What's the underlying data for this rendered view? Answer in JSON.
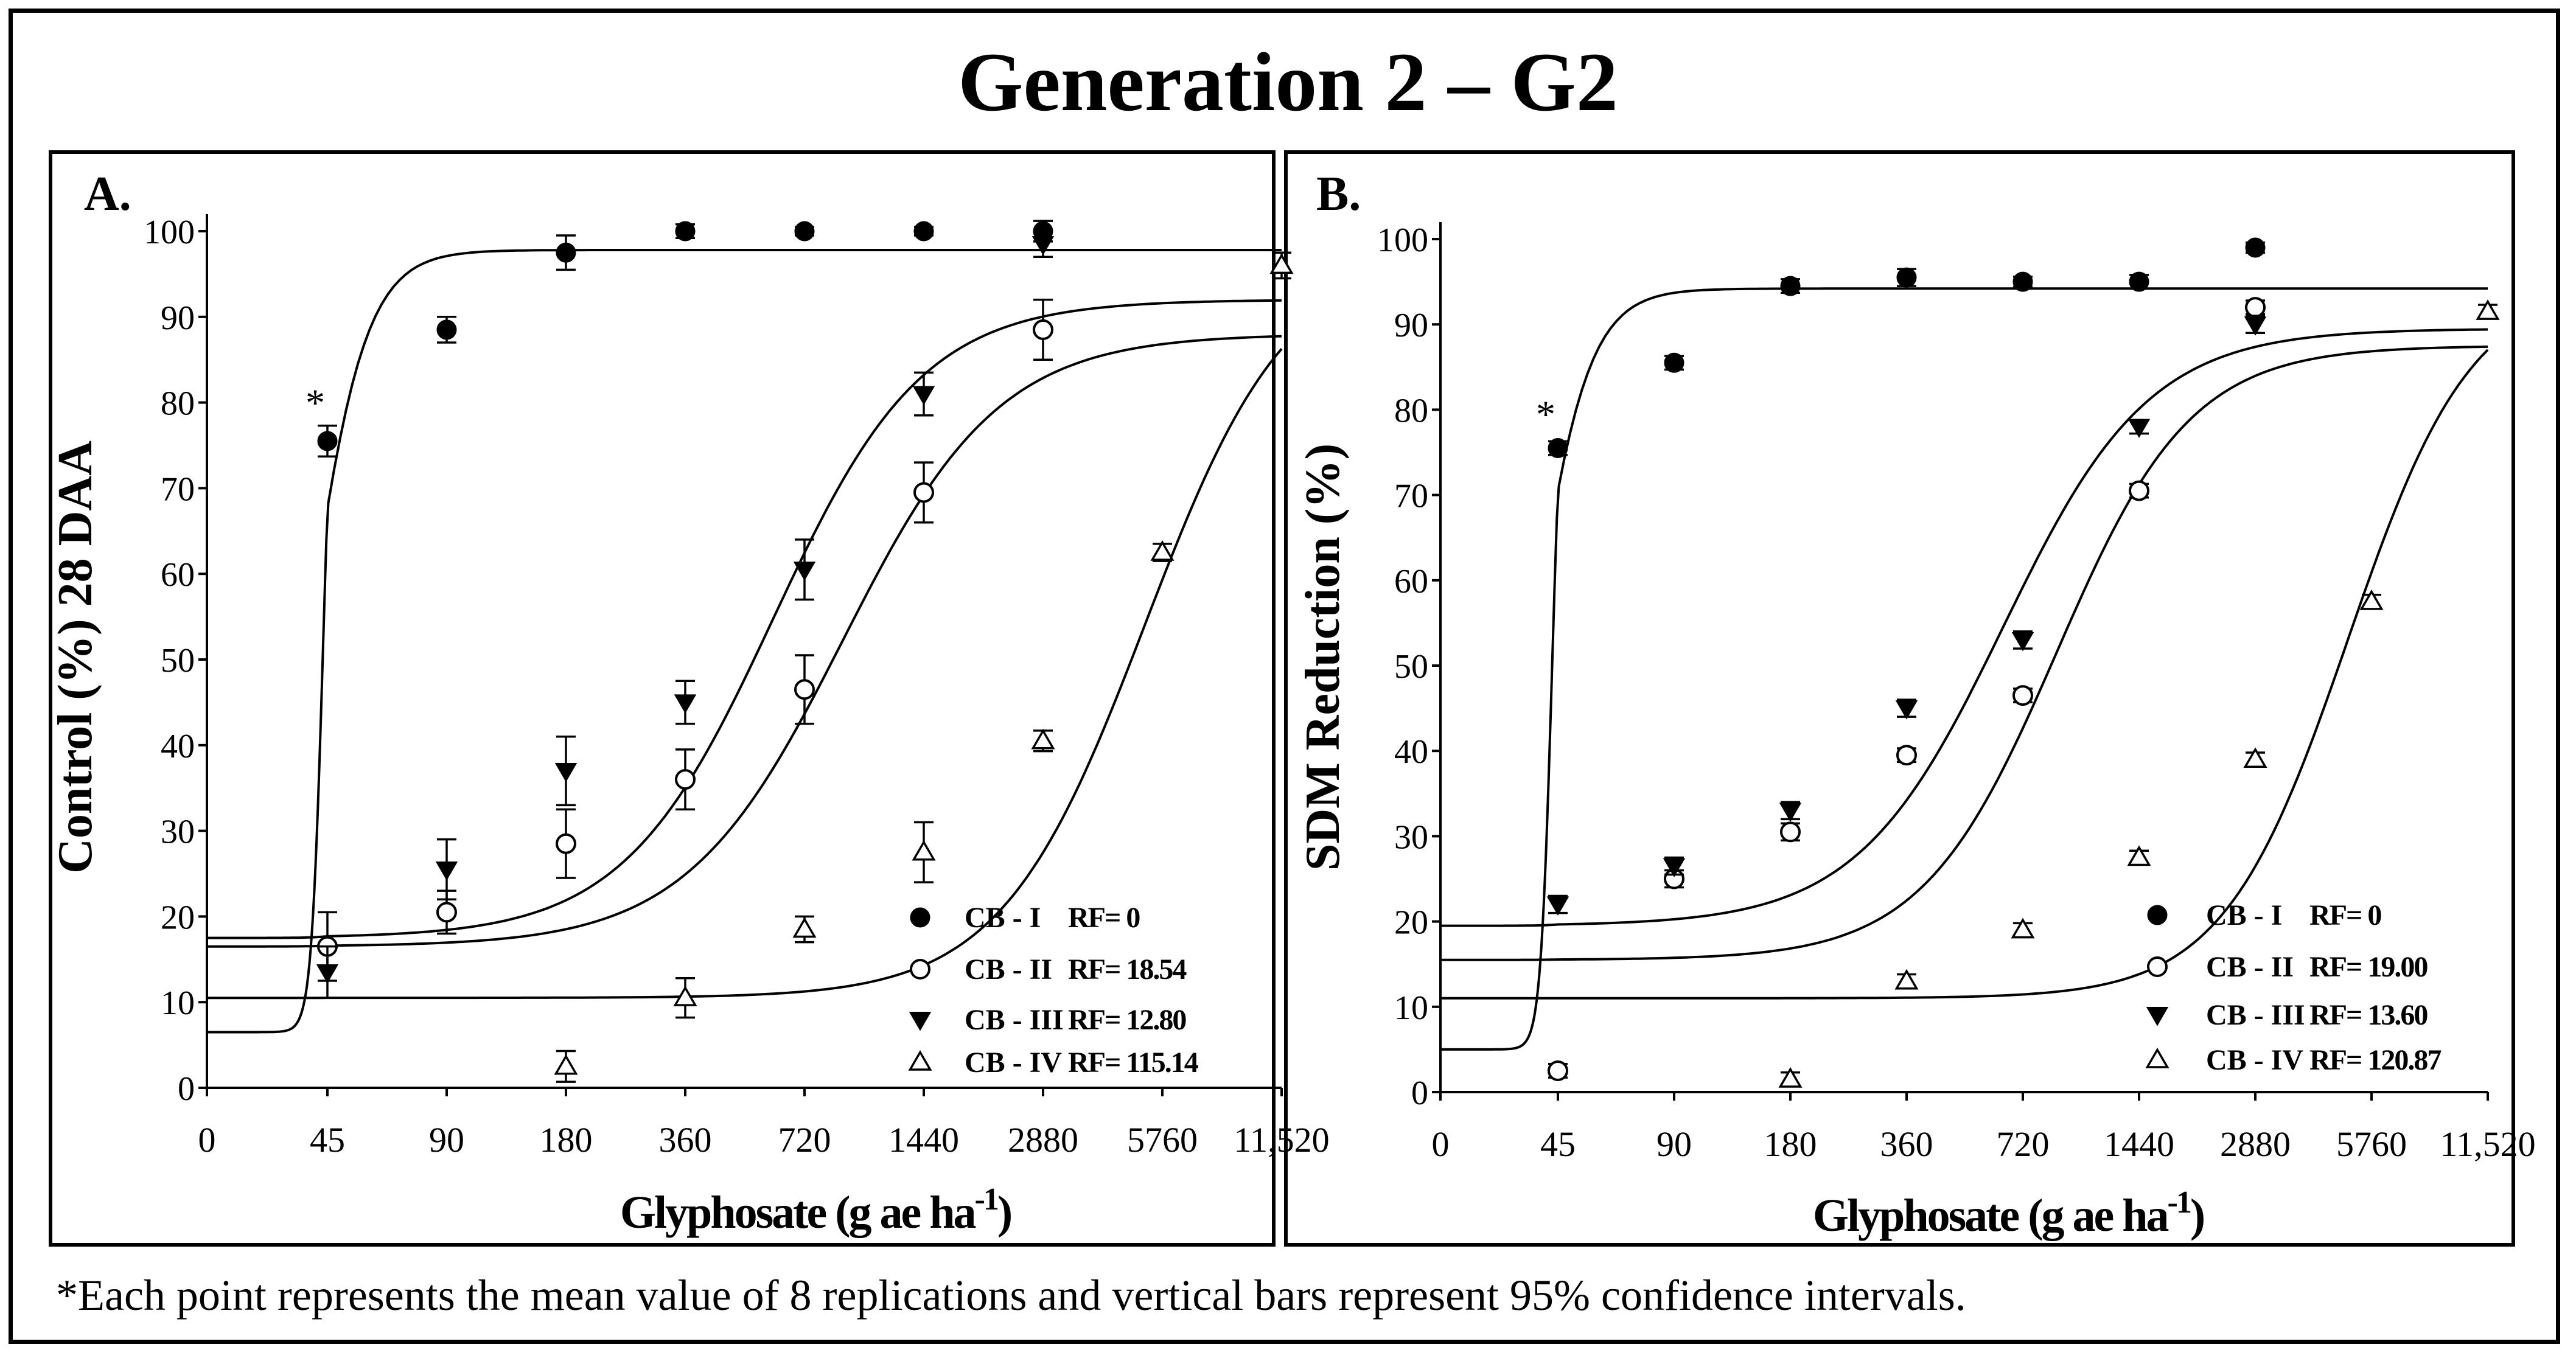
{
  "figure": {
    "title": "Generation 2 – G2",
    "footnote_marker": "*",
    "footnote_text": "Each point represents the mean value of 8 replications and vertical bars represent 95% confidence intervals."
  },
  "chart_data": [
    {
      "type": "scatter",
      "panel_label": "A.",
      "title": "",
      "ylabel": "Control (%) 28 DAA",
      "xlabel": "Glyphosate (g ae ha",
      "xlabel_sup": "-1",
      "xlabel_close": ")",
      "x_scale": "log (0 placed at origin)",
      "xlim": [
        0,
        11520
      ],
      "ylim": [
        0,
        100
      ],
      "x_ticks": [
        0,
        45,
        90,
        180,
        360,
        720,
        1440,
        2880,
        5760,
        11520
      ],
      "x_tick_labels": [
        "0",
        "45",
        "90",
        "180",
        "360",
        "720",
        "1440",
        "2880",
        "5760",
        "11,520"
      ],
      "y_ticks": [
        0,
        10,
        20,
        30,
        40,
        50,
        60,
        70,
        80,
        90,
        100
      ],
      "y_tick_labels": [
        "0",
        "10",
        "20",
        "30",
        "40",
        "50",
        "60",
        "70",
        "80",
        "90",
        "100"
      ],
      "annotation": {
        "text": "*",
        "x": 45,
        "y": 80
      },
      "legend_position": "bottom-right",
      "series": [
        {
          "name": "CB - I",
          "rf_label": "RF= 0",
          "marker": "filled-circle",
          "x": [
            45,
            90,
            180,
            360,
            720,
            1440,
            2880
          ],
          "y": [
            75.5,
            88.5,
            97.5,
            100,
            100,
            100,
            100
          ],
          "err": [
            1.8,
            1.5,
            2.0,
            0.8,
            0.5,
            0.5,
            1.2
          ],
          "fit": {
            "bottom": 6.5,
            "top": 97.8,
            "x0": 40,
            "p": 6
          }
        },
        {
          "name": "CB - II",
          "rf_label": "RF= 18.54",
          "marker": "open-circle",
          "x": [
            45,
            90,
            180,
            360,
            720,
            1440,
            2880
          ],
          "y": [
            16.5,
            20.5,
            28.5,
            36,
            46.5,
            69.5,
            88.5
          ],
          "err": [
            4.0,
            2.5,
            4.0,
            3.5,
            4.0,
            3.5,
            3.5
          ],
          "fit": {
            "bottom": 16.5,
            "top": 88,
            "x0": 900,
            "p": 2.2
          }
        },
        {
          "name": "CB - III",
          "rf_label": "RF= 12.80",
          "marker": "filled-triangle-down",
          "x": [
            45,
            90,
            180,
            360,
            720,
            1440,
            2880
          ],
          "y": [
            13.5,
            25.5,
            37,
            45,
            60.5,
            81,
            98.5
          ],
          "err": [
            3.0,
            3.5,
            4.0,
            2.5,
            3.5,
            2.5,
            1.5
          ],
          "fit": {
            "bottom": 17.5,
            "top": 92,
            "x0": 600,
            "p": 2.3
          }
        },
        {
          "name": "CB - IV",
          "rf_label": "RF= 115.14",
          "marker": "open-triangle-up",
          "x": [
            180,
            360,
            720,
            1440,
            2880,
            5760,
            11520
          ],
          "y": [
            2.5,
            10.5,
            18.5,
            27.5,
            40.5,
            62.5,
            96
          ],
          "err": [
            1.8,
            2.3,
            1.5,
            3.5,
            1.2,
            1.0,
            1.5
          ],
          "fit": {
            "bottom": 10.5,
            "top": 97.5,
            "x0": 5200,
            "p": 2.4
          }
        }
      ]
    },
    {
      "type": "scatter",
      "panel_label": "B.",
      "title": "",
      "ylabel": "SDM Reduction (%)",
      "xlabel": "Glyphosate (g ae ha",
      "xlabel_sup": "-1",
      "xlabel_close": ")",
      "x_scale": "log (0 placed at origin)",
      "xlim": [
        0,
        11520
      ],
      "ylim": [
        0,
        100
      ],
      "x_ticks": [
        0,
        45,
        90,
        180,
        360,
        720,
        1440,
        2880,
        5760,
        11520
      ],
      "x_tick_labels": [
        "0",
        "45",
        "90",
        "180",
        "360",
        "720",
        "1440",
        "2880",
        "5760",
        "11,520"
      ],
      "y_ticks": [
        0,
        10,
        20,
        30,
        40,
        50,
        60,
        70,
        80,
        90,
        100
      ],
      "y_tick_labels": [
        "0",
        "10",
        "20",
        "30",
        "40",
        "50",
        "60",
        "70",
        "80",
        "90",
        "100"
      ],
      "annotation": {
        "text": "*",
        "x": 45,
        "y": 79.5
      },
      "legend_position": "bottom-right",
      "series": [
        {
          "name": "CB - I",
          "rf_label": "RF= 0",
          "marker": "filled-circle",
          "x": [
            45,
            90,
            180,
            360,
            720,
            1440,
            2880
          ],
          "y": [
            75.5,
            85.5,
            94.5,
            95.5,
            95,
            95,
            99
          ],
          "err": [
            0.8,
            0.8,
            0.8,
            1.0,
            0.6,
            0.8,
            0.6
          ],
          "fit": {
            "bottom": 5,
            "top": 94.2,
            "x0": 38,
            "p": 6
          }
        },
        {
          "name": "CB - II",
          "rf_label": "RF= 19.00",
          "marker": "open-circle",
          "x": [
            45,
            90,
            180,
            360,
            720,
            1440,
            2880
          ],
          "y": [
            2.5,
            25,
            30.5,
            39.5,
            46.5,
            70.5,
            92
          ],
          "err": [
            0.8,
            1.0,
            1.0,
            0.8,
            0.8,
            0.8,
            0.8
          ],
          "fit": {
            "bottom": 15.5,
            "top": 87.5,
            "x0": 880,
            "p": 2.5
          }
        },
        {
          "name": "CB - III",
          "rf_label": "RF= 13.60",
          "marker": "filled-triangle-down",
          "x": [
            45,
            90,
            180,
            360,
            720,
            1440,
            2880
          ],
          "y": [
            22,
            26.5,
            33,
            45,
            53,
            78,
            90
          ],
          "err": [
            1.0,
            1.0,
            1.0,
            1.0,
            1.0,
            0.8,
            1.0
          ],
          "fit": {
            "bottom": 19.5,
            "top": 89.5,
            "x0": 640,
            "p": 2.3
          }
        },
        {
          "name": "CB - IV",
          "rf_label": "RF= 120.87",
          "marker": "open-triangle-up",
          "x": [
            180,
            360,
            720,
            1440,
            2880,
            5760,
            11520
          ],
          "y": [
            1.5,
            13,
            19,
            27.5,
            39,
            57.5,
            91.5
          ],
          "err": [
            0.8,
            0.8,
            0.8,
            0.8,
            0.8,
            0.8,
            0.8
          ],
          "fit": {
            "bottom": 11,
            "top": 95,
            "x0": 5000,
            "p": 2.7
          }
        }
      ]
    }
  ]
}
